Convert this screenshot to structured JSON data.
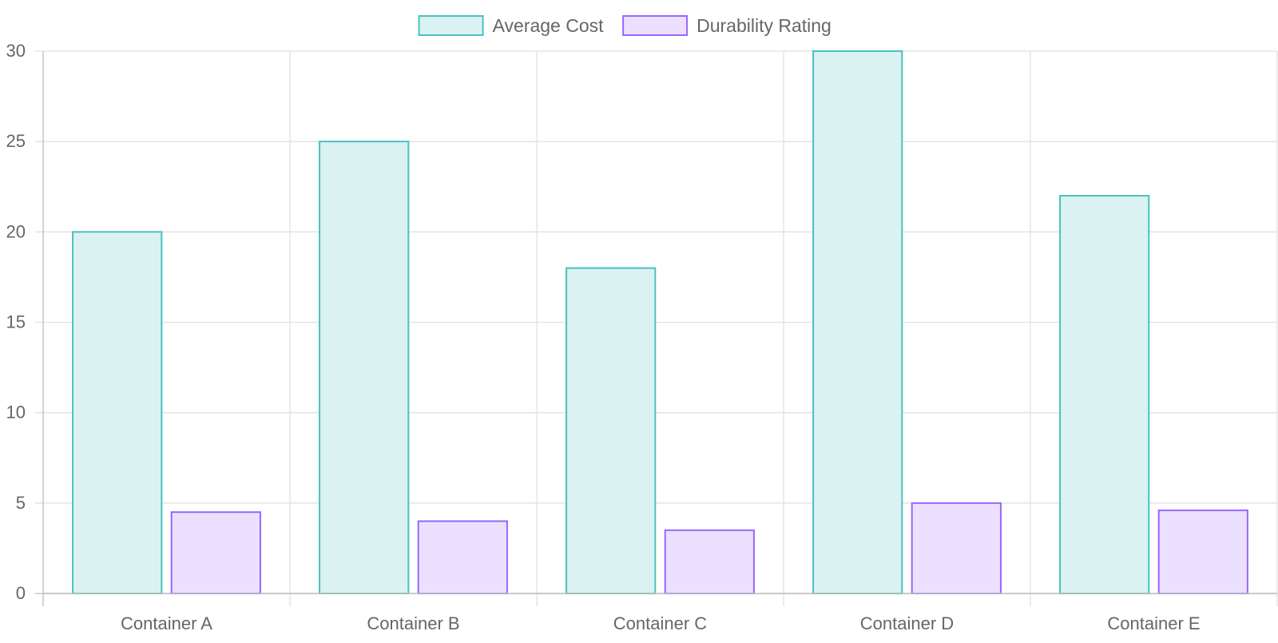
{
  "chart_data": {
    "type": "bar",
    "categories": [
      "Container A",
      "Container B",
      "Container C",
      "Container D",
      "Container E"
    ],
    "series": [
      {
        "name": "Average Cost",
        "values": [
          20,
          25,
          18,
          30,
          22
        ],
        "stroke": "#4bc0c0",
        "fill": "#dbf2f2"
      },
      {
        "name": "Durability Rating",
        "values": [
          4.5,
          4.0,
          3.5,
          5.0,
          4.6
        ],
        "stroke": "#9966ff",
        "fill": "#ebe0ff"
      }
    ],
    "ylim": [
      0,
      30
    ],
    "yticks": [
      0,
      5,
      10,
      15,
      20,
      25,
      30
    ],
    "grid": true,
    "legend_position": "top-center",
    "colors": {
      "grid": "#e1e1e1",
      "axis": "#bdbdbd",
      "text": "#666666"
    }
  }
}
